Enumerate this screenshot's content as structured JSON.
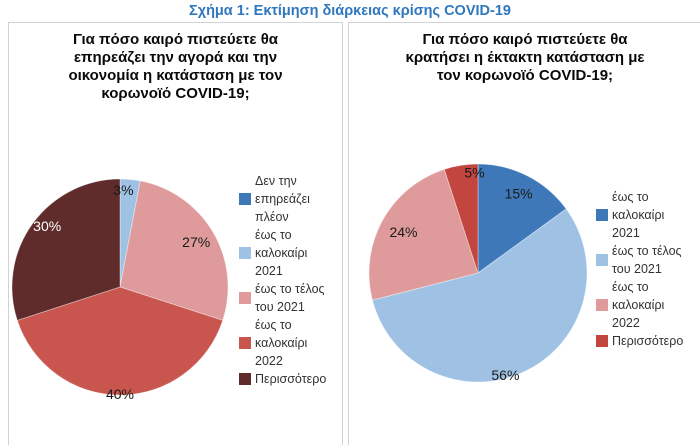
{
  "figure": {
    "title": "Σχήμα 1: Εκτίμηση διάρκειας κρίσης COVID-19",
    "title_color": "#2F77BE"
  },
  "chart_data": [
    {
      "type": "pie",
      "title": "Για πόσο καιρό πιστεύετε θα\nεπηρεάζει την αγορά και την\nοικονομία η κατάσταση με τον\nκορωνοϊό COVID-19;",
      "legend_position": "right",
      "start_angle_deg": 0,
      "slices": [
        {
          "label": "Δεν την επηρεάζει πλέον",
          "legend_label": "Δεν την\nεπηρεάζει\nπλέον",
          "value": 0,
          "pct_label": "",
          "color": "#3E78B8"
        },
        {
          "label": "έως το καλοκαίρι 2021",
          "legend_label": "έως το\nκαλοκαίρι\n2021",
          "value": 3,
          "pct_label": "3%",
          "color": "#9FC2E4",
          "label_r": 0.9,
          "label_angle_deg": 2,
          "label_color": "#1a1a1a"
        },
        {
          "label": "έως το τέλος του 2021",
          "legend_label": "έως το τέλος\nτου 2021",
          "value": 27,
          "pct_label": "27%",
          "color": "#DF9B9B",
          "label_r": 0.82,
          "label_color": "#1a1a1a"
        },
        {
          "label": "έως το καλοκαίρι 2022",
          "legend_label": "έως το\nκαλοκαίρι\n2022",
          "value": 40,
          "pct_label": "40%",
          "color": "#C9554F",
          "label_r": 0.99,
          "label_color": "#1a1a1a"
        },
        {
          "label": "Περισσότερο",
          "legend_label": "Περισσότερο",
          "value": 30,
          "pct_label": "30%",
          "color": "#602B2B",
          "label_r": 0.88,
          "label_angle_deg": 310,
          "label_color": "#ffffff"
        }
      ]
    },
    {
      "type": "pie",
      "title": "Για πόσο καιρό πιστεύετε θα\nκρατήσει η έκτακτη κατάσταση με\nτον κορωνοϊό COVID-19;",
      "legend_position": "right",
      "start_angle_deg": 0,
      "slices": [
        {
          "label": "έως το καλοκαίρι 2021",
          "legend_label": "έως το\nκαλοκαίρι\n2021",
          "value": 15,
          "pct_label": "15%",
          "color": "#3E78B8",
          "label_r": 0.82,
          "label_color": "#1a1a1a"
        },
        {
          "label": "έως το τέλος του 2021",
          "legend_label": "έως το τέλος\nτου 2021",
          "value": 56,
          "pct_label": "56%",
          "color": "#9FC2E4",
          "label_r": 0.97,
          "label_angle_deg": 165,
          "label_color": "#1a1a1a"
        },
        {
          "label": "έως το καλοκαίρι 2022",
          "legend_label": "έως το\nκαλοκαίρι\n2022",
          "value": 24,
          "pct_label": "24%",
          "color": "#DF9B9B",
          "label_r": 0.78,
          "label_color": "#1a1a1a"
        },
        {
          "label": "Περισσότερο",
          "legend_label": "Περισσότερο",
          "value": 5,
          "pct_label": "5%",
          "color": "#C2463F",
          "label_r": 0.92,
          "label_angle_deg": 358,
          "label_color": "#1a1a1a"
        }
      ]
    }
  ]
}
